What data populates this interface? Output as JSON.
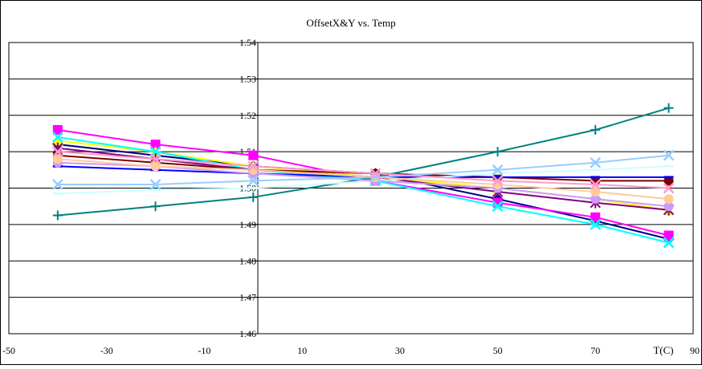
{
  "chart_data": {
    "type": "line",
    "title": "OffsetX&Y vs. Temp",
    "xlabel": "T(C)",
    "ylabel": "",
    "xlim": [
      -50,
      90
    ],
    "ylim": [
      1.46,
      1.54
    ],
    "xticks": [
      -50,
      -30,
      -10,
      10,
      30,
      50,
      70,
      90
    ],
    "xtick_labels": [
      "-50",
      "-30",
      "-10",
      "10",
      "30",
      "50",
      "70",
      "90"
    ],
    "yticks": [
      1.46,
      1.47,
      1.48,
      1.49,
      1.5,
      1.51,
      1.52,
      1.53,
      1.54
    ],
    "ytick_labels": [
      "1.46",
      "1.47",
      "1.48",
      "1.49",
      "1.50",
      "1.51",
      "1.52",
      "1.53",
      "1.54"
    ],
    "grid": "horizontal",
    "legend": "none",
    "x": [
      -40,
      -20,
      0,
      25,
      50,
      70,
      85
    ],
    "series": [
      {
        "color": "#000080",
        "marker": "diamond",
        "values": [
          1.512,
          1.509,
          1.506,
          1.504,
          1.497,
          1.491,
          1.486
        ]
      },
      {
        "color": "#ff00ff",
        "marker": "square",
        "values": [
          1.516,
          1.512,
          1.509,
          1.502,
          1.496,
          1.492,
          1.487
        ]
      },
      {
        "color": "#ffff00",
        "marker": "triangle",
        "values": [
          1.513,
          1.51,
          1.506,
          1.503,
          1.5,
          1.497,
          1.494
        ]
      },
      {
        "color": "#00ffff",
        "marker": "x",
        "values": [
          1.514,
          1.51,
          1.505,
          1.502,
          1.495,
          1.49,
          1.485
        ]
      },
      {
        "color": "#800080",
        "marker": "star",
        "values": [
          1.511,
          1.508,
          1.505,
          1.503,
          1.499,
          1.496,
          1.494
        ]
      },
      {
        "color": "#800000",
        "marker": "circle",
        "values": [
          1.509,
          1.507,
          1.505,
          1.504,
          1.503,
          1.502,
          1.502
        ]
      },
      {
        "color": "#008080",
        "marker": "plus",
        "values": [
          1.4925,
          1.495,
          1.4975,
          1.503,
          1.51,
          1.516,
          1.522
        ]
      },
      {
        "color": "#0000ff",
        "marker": "dash",
        "values": [
          1.506,
          1.505,
          1.504,
          1.503,
          1.503,
          1.503,
          1.503
        ]
      },
      {
        "color": "#ccffff",
        "marker": "dash",
        "values": [
          1.4985,
          1.4995,
          1.5,
          1.502,
          1.504,
          1.505,
          1.506
        ]
      },
      {
        "color": "#cc99ff",
        "marker": "circle",
        "values": [
          1.507,
          1.506,
          1.504,
          1.502,
          1.5,
          1.497,
          1.495
        ]
      },
      {
        "color": "#ffcc99",
        "marker": "circle",
        "values": [
          1.508,
          1.506,
          1.505,
          1.503,
          1.501,
          1.499,
          1.497
        ]
      },
      {
        "color": "#99ccff",
        "marker": "x",
        "values": [
          1.501,
          1.501,
          1.502,
          1.503,
          1.505,
          1.507,
          1.509
        ]
      },
      {
        "color": "#ff99cc",
        "marker": "x",
        "values": [
          1.51,
          1.508,
          1.506,
          1.504,
          1.502,
          1.501,
          1.5
        ]
      }
    ]
  }
}
